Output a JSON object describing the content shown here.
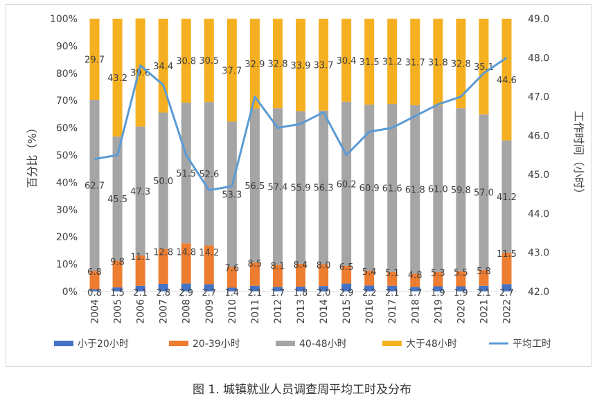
{
  "caption": "图 1. 城镇就业人员调查周平均工时及分布",
  "chart_data": {
    "type": "bar",
    "stacked": true,
    "categories": [
      "2004",
      "2005",
      "2006",
      "2007",
      "2008",
      "2009",
      "2010",
      "2011",
      "2012",
      "2013",
      "2014",
      "2015",
      "2016",
      "2017",
      "2018",
      "2019",
      "2020",
      "2021",
      "2022"
    ],
    "series": [
      {
        "name": "小于20小时",
        "color": "#4472c4",
        "values": [
          0.8,
          1.5,
          2.1,
          2.8,
          2.9,
          2.7,
          1.4,
          2.1,
          1.7,
          1.8,
          2.0,
          2.9,
          2.2,
          2.1,
          1.7,
          1.9,
          1.9,
          2.1,
          2.7
        ],
        "labels": [
          "0.8",
          "1.5",
          "2.1",
          "2.8",
          "2.9",
          "2.7",
          "1.4",
          "2.1",
          "1.7",
          "1.8",
          "2.0",
          "2.9",
          "2.2",
          "2.1",
          "1.7",
          "1.9",
          "1.9",
          "2.1",
          "2.7"
        ]
      },
      {
        "name": "20-39小时",
        "color": "#ed7d31",
        "values": [
          6.8,
          9.8,
          11.1,
          12.8,
          14.8,
          14.2,
          7.6,
          8.5,
          8.1,
          8.4,
          8.0,
          6.5,
          5.4,
          5.1,
          4.8,
          5.3,
          5.5,
          5.8,
          11.5
        ],
        "labels": [
          "6.8",
          "9.8",
          "11.1",
          "12.8",
          "14.8",
          "14.2",
          "7.6",
          "8.5",
          "8.1",
          "8.4",
          "8.0",
          "6.5",
          "5.4",
          "5.1",
          "4.8",
          "5.3",
          "5.5",
          "5.8",
          "11.5"
        ]
      },
      {
        "name": "40-48小时",
        "color": "#a5a5a5",
        "values": [
          62.7,
          45.5,
          47.3,
          50.0,
          51.5,
          52.6,
          53.3,
          56.5,
          57.4,
          55.9,
          56.3,
          60.2,
          60.9,
          61.6,
          61.8,
          61.0,
          59.8,
          57.0,
          41.2
        ],
        "labels": [
          "62.7",
          "45.5",
          "47.3",
          "50.0",
          "51.5",
          "52.6",
          "53.3",
          "56.5",
          "57.4",
          "55.9",
          "56.3",
          "60.2",
          "60.9",
          "61.6",
          "61.8",
          "61.0",
          "59.8",
          "57.0",
          "41.2"
        ]
      },
      {
        "name": "大于48小时",
        "color": "#f5b021",
        "values": [
          29.7,
          43.2,
          39.6,
          34.4,
          30.8,
          30.5,
          37.7,
          32.9,
          32.8,
          33.9,
          33.7,
          30.4,
          31.5,
          31.2,
          31.7,
          31.8,
          32.8,
          35.1,
          44.6
        ],
        "labels": [
          "29.7",
          "43.2",
          "39.6",
          "34.4",
          "30.8",
          "30.5",
          "37.7",
          "32.9",
          "32.8",
          "33.9",
          "33.7",
          "30.4",
          "31.5",
          "31.2",
          "31.7",
          "31.8",
          "32.8",
          "35.1",
          "44.6"
        ]
      }
    ],
    "line_series": {
      "name": "平均工时",
      "color": "#5b9bd5",
      "values": [
        45.4,
        45.5,
        47.8,
        47.3,
        45.5,
        44.6,
        44.7,
        47.0,
        46.2,
        46.3,
        46.6,
        45.5,
        46.1,
        46.2,
        46.5,
        46.8,
        47.0,
        47.6,
        48.0
      ]
    },
    "y_left": {
      "label": "百分比（%）",
      "ticks": [
        "0%",
        "10%",
        "20%",
        "30%",
        "40%",
        "50%",
        "60%",
        "70%",
        "80%",
        "90%",
        "100%"
      ],
      "min": 0,
      "max": 100
    },
    "y_right": {
      "label": "工作时间（小时）",
      "ticks": [
        "42.0",
        "43.0",
        "44.0",
        "45.0",
        "46.0",
        "47.0",
        "48.0",
        "49.0"
      ],
      "min": 42,
      "max": 49
    },
    "legend_position": "bottom"
  }
}
